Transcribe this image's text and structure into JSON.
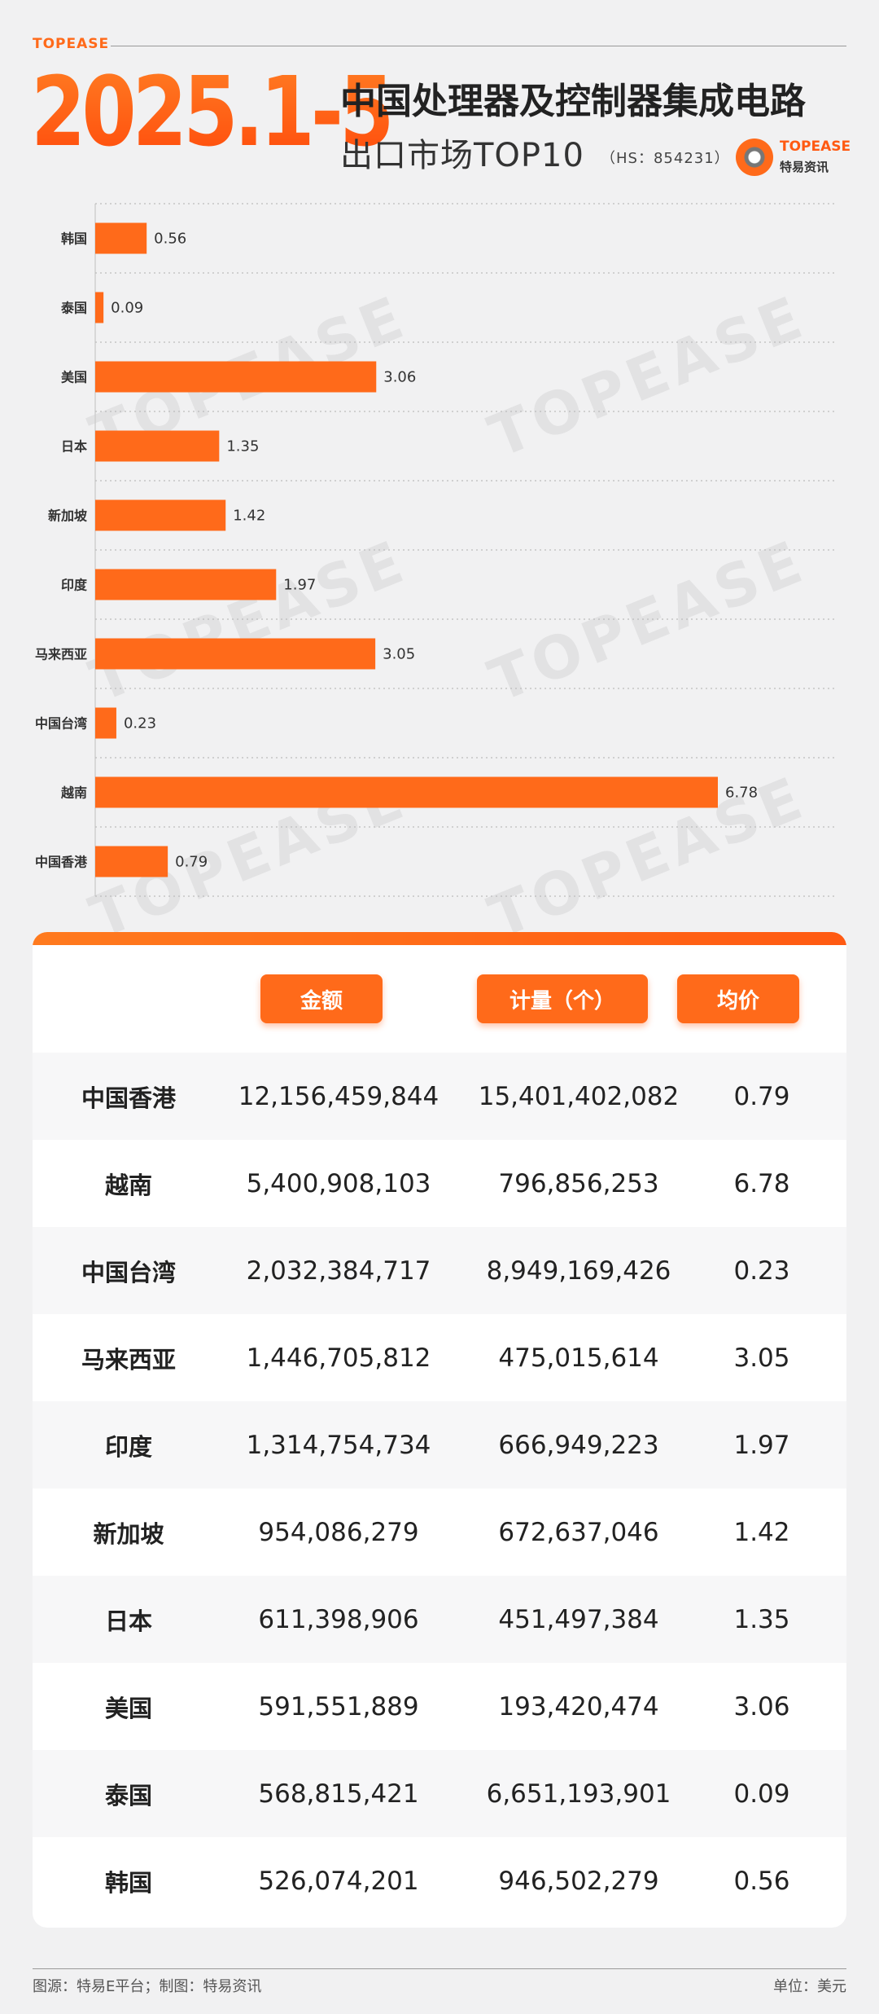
{
  "header": {
    "brand": "TOPEASE",
    "date_range": "2025.1-5",
    "title_line1": "中国处理器及控制器集成电路",
    "title_line2": "出口市场TOP10",
    "hs_code": "（HS：854231）",
    "logo_name": "TOPEASE",
    "logo_sub": "特易资讯",
    "watermark": "TOPEASE"
  },
  "chart_data": {
    "type": "bar",
    "orientation": "horizontal",
    "categories": [
      "韩国",
      "泰国",
      "美国",
      "日本",
      "新加坡",
      "印度",
      "马来西亚",
      "中国台湾",
      "越南",
      "中国香港"
    ],
    "values": [
      0.56,
      0.09,
      3.06,
      1.35,
      1.42,
      1.97,
      3.05,
      0.23,
      6.78,
      0.79
    ],
    "value_labels": [
      "0.56",
      "0.09",
      "3.06",
      "1.35",
      "1.42",
      "1.97",
      "3.05",
      "0.23",
      "6.78",
      "0.79"
    ],
    "bar_color": "#ff6a1a",
    "grid": true
  },
  "table": {
    "headers": [
      "金额",
      "计量（个）",
      "均价"
    ],
    "rows": [
      {
        "country": "中国香港",
        "amount": "12,156,459,844",
        "quantity": "15,401,402,082",
        "avg_price": "0.79"
      },
      {
        "country": "越南",
        "amount": "5,400,908,103",
        "quantity": "796,856,253",
        "avg_price": "6.78"
      },
      {
        "country": "中国台湾",
        "amount": "2,032,384,717",
        "quantity": "8,949,169,426",
        "avg_price": "0.23"
      },
      {
        "country": "马来西亚",
        "amount": "1,446,705,812",
        "quantity": "475,015,614",
        "avg_price": "3.05"
      },
      {
        "country": "印度",
        "amount": "1,314,754,734",
        "quantity": "666,949,223",
        "avg_price": "1.97"
      },
      {
        "country": "新加坡",
        "amount": "954,086,279",
        "quantity": "672,637,046",
        "avg_price": "1.42"
      },
      {
        "country": "日本",
        "amount": "611,398,906",
        "quantity": "451,497,384",
        "avg_price": "1.35"
      },
      {
        "country": "美国",
        "amount": "591,551,889",
        "quantity": "193,420,474",
        "avg_price": "3.06"
      },
      {
        "country": "泰国",
        "amount": "568,815,421",
        "quantity": "6,651,193,901",
        "avg_price": "0.09"
      },
      {
        "country": "韩国",
        "amount": "526,074,201",
        "quantity": "946,502,279",
        "avg_price": "0.56"
      }
    ]
  },
  "footer": {
    "source": "图源：特易E平台；制图：特易资讯",
    "unit": "单位：美元"
  },
  "colors": {
    "accent": "#ff6a1a",
    "accent_dark": "#ff5a12"
  }
}
